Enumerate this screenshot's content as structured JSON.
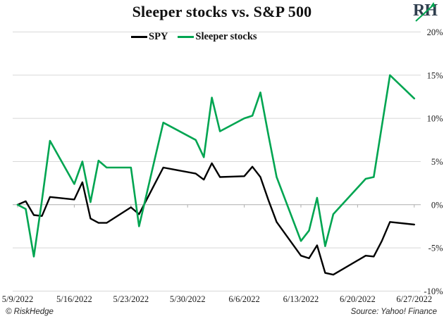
{
  "header": {
    "title": "Sleeper stocks vs. S&P 500",
    "logo_text": "RH"
  },
  "legend": [
    {
      "label": "SPY",
      "color": "#000000"
    },
    {
      "label": "Sleeper stocks",
      "color": "#00a551"
    }
  ],
  "footer": {
    "left": "© RiskHedge",
    "right": "Source: Yahoo! Finance"
  },
  "chart_data": {
    "type": "line",
    "title": "Sleeper stocks vs. S&P 500",
    "xlabel": "",
    "ylabel": "",
    "y_unit": "%",
    "ylim": [
      -10,
      20
    ],
    "grid": true,
    "legend_position": "top-center",
    "y_ticks": [
      20,
      15,
      10,
      5,
      0,
      -5,
      -10
    ],
    "y_tick_labels": [
      "20%",
      "15%",
      "10%",
      "5%",
      "0%",
      "-5%",
      "-10%"
    ],
    "x_tick_labels": [
      "5/9/2022",
      "5/16/2022",
      "5/23/2022",
      "5/30/2022",
      "6/6/2022",
      "6/13/2022",
      "6/20/2022",
      "6/27/2022"
    ],
    "x_tick_days": [
      0,
      7,
      14,
      21,
      28,
      35,
      42,
      49
    ],
    "dates": [
      "5/9/2022",
      "5/10/2022",
      "5/11/2022",
      "5/12/2022",
      "5/13/2022",
      "5/16/2022",
      "5/17/2022",
      "5/18/2022",
      "5/19/2022",
      "5/20/2022",
      "5/23/2022",
      "5/24/2022",
      "5/25/2022",
      "5/26/2022",
      "5/27/2022",
      "5/31/2022",
      "6/1/2022",
      "6/2/2022",
      "6/3/2022",
      "6/6/2022",
      "6/7/2022",
      "6/8/2022",
      "6/9/2022",
      "6/10/2022",
      "6/13/2022",
      "6/14/2022",
      "6/15/2022",
      "6/16/2022",
      "6/17/2022",
      "6/21/2022",
      "6/22/2022",
      "6/23/2022",
      "6/24/2022",
      "6/27/2022"
    ],
    "day_offsets": [
      0,
      1,
      2,
      3,
      4,
      7,
      8,
      9,
      10,
      11,
      14,
      15,
      16,
      17,
      18,
      22,
      23,
      24,
      25,
      28,
      29,
      30,
      31,
      32,
      35,
      36,
      37,
      38,
      39,
      43,
      44,
      45,
      46,
      49
    ],
    "series": [
      {
        "name": "SPY",
        "color": "#000000",
        "stroke_width": 2.4,
        "values": [
          0.0,
          0.4,
          -1.2,
          -1.3,
          0.9,
          0.6,
          2.6,
          -1.6,
          -2.1,
          -2.1,
          -0.3,
          -1.1,
          0.7,
          2.5,
          4.3,
          3.6,
          2.9,
          4.8,
          3.2,
          3.3,
          4.4,
          3.2,
          0.5,
          -2.0,
          -5.9,
          -6.2,
          -4.7,
          -7.9,
          -8.1,
          -5.9,
          -6.0,
          -4.2,
          -2.0,
          -2.3
        ]
      },
      {
        "name": "Sleeper stocks",
        "color": "#00a551",
        "stroke_width": 2.6,
        "values": [
          0.0,
          -0.5,
          -6.0,
          0.5,
          7.4,
          2.4,
          5.0,
          0.3,
          5.1,
          4.3,
          4.3,
          -2.5,
          1.5,
          5.5,
          9.5,
          7.5,
          5.5,
          12.4,
          8.5,
          10.0,
          10.3,
          13.0,
          8.0,
          3.2,
          -4.2,
          -3.0,
          0.8,
          -4.8,
          -1.1,
          3.0,
          3.2,
          9.1,
          15.0,
          12.3
        ]
      }
    ]
  },
  "layout_colors": {
    "grid": "#d8d8d8",
    "zero_line": "#aeaeae",
    "logo_letters": "#2f3e4e",
    "logo_arrow": "#00a551"
  }
}
